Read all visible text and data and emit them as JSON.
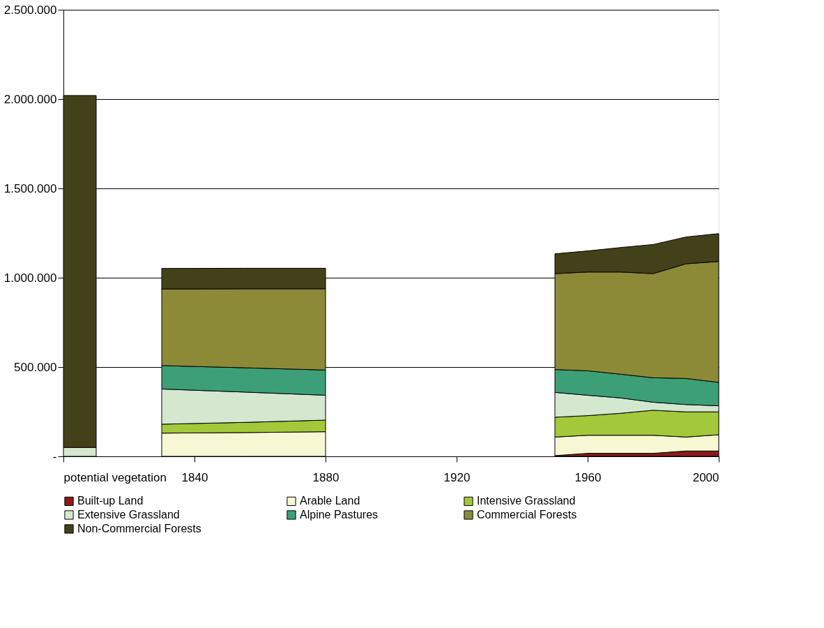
{
  "chart_data": {
    "type": "area",
    "stacked": true,
    "x": [
      1800,
      1810,
      1820,
      1830,
      1855,
      1880,
      1915,
      1950,
      1960,
      1970,
      1980,
      1990,
      2000
    ],
    "series": [
      {
        "name": "Built-up Land",
        "color": "#8b1a1a",
        "values": [
          null,
          null,
          null,
          null,
          null,
          null,
          null,
          4000,
          17000,
          17000,
          17000,
          30000,
          30000
        ]
      },
      {
        "name": "Arable Land",
        "color": "#f7f7d4",
        "values": [
          null,
          null,
          null,
          130000,
          133000,
          138000,
          null,
          104000,
          101000,
          101000,
          101000,
          78000,
          91000
        ]
      },
      {
        "name": "Intensive Grassland",
        "color": "#a3c83a",
        "values": [
          null,
          null,
          null,
          50000,
          57000,
          65000,
          null,
          111000,
          110000,
          123000,
          140000,
          141000,
          128000
        ]
      },
      {
        "name": "Extensive Grassland",
        "color": "#d3e8cf",
        "values": [
          50000,
          50000,
          null,
          197000,
          170000,
          139000,
          null,
          139000,
          114000,
          86000,
          45000,
          41000,
          34000
        ]
      },
      {
        "name": "Alpine Pastures",
        "color": "#3c9f77",
        "values": [
          null,
          null,
          null,
          131000,
          136000,
          141000,
          null,
          128000,
          137000,
          133000,
          137000,
          146000,
          131000
        ]
      },
      {
        "name": "Commercial Forests",
        "color": "#8c8a37",
        "values": [
          null,
          null,
          null,
          429000,
          442000,
          455000,
          null,
          537000,
          553000,
          572000,
          583000,
          642000,
          677000
        ]
      },
      {
        "name": "Non-Commercial Forests",
        "color": "#434119",
        "values": [
          1970000,
          1970000,
          null,
          115000,
          115000,
          115000,
          null,
          111000,
          118000,
          137000,
          163000,
          150000,
          156000
        ]
      }
    ],
    "xlim": [
      1800,
      2000
    ],
    "xticks": [
      {
        "value": 1800,
        "label": "potential vegetation"
      },
      1840,
      1880,
      1920,
      1960,
      2000
    ],
    "ylim": [
      0,
      2500000
    ],
    "yticks": [
      {
        "value": 0,
        "label": "-"
      },
      {
        "value": 500000,
        "label": "500.000"
      },
      {
        "value": 1000000,
        "label": "1.000.000"
      },
      {
        "value": 1500000,
        "label": "1.500.000"
      },
      {
        "value": 2000000,
        "label": "2.000.000"
      },
      {
        "value": 2500000,
        "label": "2.500.000"
      }
    ],
    "grid": "y",
    "legend": "bottom"
  }
}
